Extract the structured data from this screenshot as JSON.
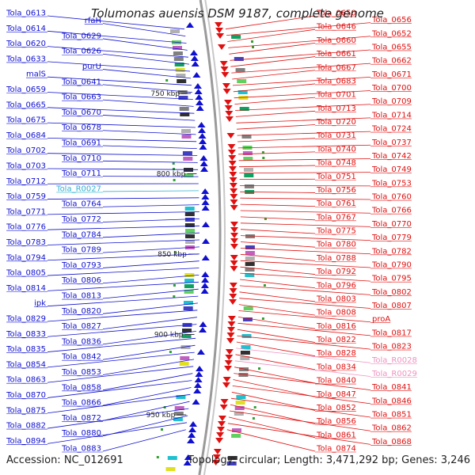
{
  "title": "Tolumonas auensis DSM 9187, complete genome",
  "footer": {
    "accession": "Accession: NC_012691",
    "summary": "Topology: circular; Length: 3,471,292 bp; Genes: 3,246"
  },
  "colors": {
    "left_strand": "#1010d0",
    "right_strand": "#e01010",
    "rna": "#30b0d0",
    "pseudo": "#f090c0",
    "backbone": "#9a9a9a"
  },
  "scale_marks": [
    {
      "label": "750 kbp",
      "pos": 750
    },
    {
      "label": "800 kbp",
      "pos": 800
    },
    {
      "label": "850 kbp",
      "pos": 850
    },
    {
      "label": "900 kbp",
      "pos": 900
    },
    {
      "label": "950 kbp",
      "pos": 950
    }
  ],
  "left_labels": [
    {
      "name": "Tola_0613",
      "type": "cds"
    },
    {
      "name": "rfaH",
      "type": "cds"
    },
    {
      "name": "Tola_0614",
      "type": "cds"
    },
    {
      "name": "Tola_0629",
      "type": "cds"
    },
    {
      "name": "Tola_0620",
      "type": "cds"
    },
    {
      "name": "Tola_0626",
      "type": "cds"
    },
    {
      "name": "Tola_0633",
      "type": "cds"
    },
    {
      "name": "purU",
      "type": "cds"
    },
    {
      "name": "malS",
      "type": "cds"
    },
    {
      "name": "Tola_0641",
      "type": "cds"
    },
    {
      "name": "Tola_0659",
      "type": "cds"
    },
    {
      "name": "Tola_0663",
      "type": "cds"
    },
    {
      "name": "Tola_0665",
      "type": "cds"
    },
    {
      "name": "Tola_0670",
      "type": "cds"
    },
    {
      "name": "Tola_0675",
      "type": "cds"
    },
    {
      "name": "Tola_0678",
      "type": "cds"
    },
    {
      "name": "Tola_0684",
      "type": "cds"
    },
    {
      "name": "Tola_0691",
      "type": "cds"
    },
    {
      "name": "Tola_0702",
      "type": "cds"
    },
    {
      "name": "Tola_0710",
      "type": "cds"
    },
    {
      "name": "Tola_0703",
      "type": "cds"
    },
    {
      "name": "Tola_0711",
      "type": "cds"
    },
    {
      "name": "Tola_0712",
      "type": "cds"
    },
    {
      "name": "Tola_R0027",
      "type": "rna"
    },
    {
      "name": "Tola_0759",
      "type": "cds"
    },
    {
      "name": "Tola_0764",
      "type": "cds"
    },
    {
      "name": "Tola_0771",
      "type": "cds"
    },
    {
      "name": "Tola_0772",
      "type": "cds"
    },
    {
      "name": "Tola_0776",
      "type": "cds"
    },
    {
      "name": "Tola_0784",
      "type": "cds"
    },
    {
      "name": "Tola_0783",
      "type": "cds"
    },
    {
      "name": "Tola_0789",
      "type": "cds"
    },
    {
      "name": "Tola_0794",
      "type": "cds"
    },
    {
      "name": "Tola_0793",
      "type": "cds"
    },
    {
      "name": "Tola_0805",
      "type": "cds"
    },
    {
      "name": "Tola_0806",
      "type": "cds"
    },
    {
      "name": "Tola_0814",
      "type": "cds"
    },
    {
      "name": "Tola_0813",
      "type": "cds"
    },
    {
      "name": "ipk",
      "type": "cds"
    },
    {
      "name": "Tola_0820",
      "type": "cds"
    },
    {
      "name": "Tola_0829",
      "type": "cds"
    },
    {
      "name": "Tola_0827",
      "type": "cds"
    },
    {
      "name": "Tola_0833",
      "type": "cds"
    },
    {
      "name": "Tola_0836",
      "type": "cds"
    },
    {
      "name": "Tola_0835",
      "type": "cds"
    },
    {
      "name": "Tola_0842",
      "type": "cds"
    },
    {
      "name": "Tola_0854",
      "type": "cds"
    },
    {
      "name": "Tola_0853",
      "type": "cds"
    },
    {
      "name": "Tola_0863",
      "type": "cds"
    },
    {
      "name": "Tola_0858",
      "type": "cds"
    },
    {
      "name": "Tola_0870",
      "type": "cds"
    },
    {
      "name": "Tola_0866",
      "type": "cds"
    },
    {
      "name": "Tola_0875",
      "type": "cds"
    },
    {
      "name": "Tola_0872",
      "type": "cds"
    },
    {
      "name": "Tola_0882",
      "type": "cds"
    },
    {
      "name": "Tola_0880",
      "type": "cds"
    },
    {
      "name": "Tola_0894",
      "type": "cds"
    },
    {
      "name": "Tola_0883",
      "type": "cds"
    }
  ],
  "right_labels": [
    {
      "name": "Tola_0650",
      "type": "cds"
    },
    {
      "name": "Tola_0656",
      "type": "cds"
    },
    {
      "name": "Tola_0646",
      "type": "cds"
    },
    {
      "name": "Tola_0652",
      "type": "cds"
    },
    {
      "name": "Tola_0660",
      "type": "cds"
    },
    {
      "name": "Tola_0655",
      "type": "cds"
    },
    {
      "name": "Tola_0661",
      "type": "cds"
    },
    {
      "name": "Tola_0662",
      "type": "cds"
    },
    {
      "name": "Tola_0667",
      "type": "cds"
    },
    {
      "name": "Tola_0671",
      "type": "cds"
    },
    {
      "name": "Tola_0683",
      "type": "cds"
    },
    {
      "name": "Tola_0700",
      "type": "cds"
    },
    {
      "name": "Tola_0701",
      "type": "cds"
    },
    {
      "name": "Tola_0709",
      "type": "cds"
    },
    {
      "name": "Tola_0713",
      "type": "cds"
    },
    {
      "name": "Tola_0714",
      "type": "cds"
    },
    {
      "name": "Tola_0720",
      "type": "cds"
    },
    {
      "name": "Tola_0724",
      "type": "cds"
    },
    {
      "name": "Tola_0731",
      "type": "cds"
    },
    {
      "name": "Tola_0737",
      "type": "cds"
    },
    {
      "name": "Tola_0740",
      "type": "cds"
    },
    {
      "name": "Tola_0742",
      "type": "cds"
    },
    {
      "name": "Tola_0748",
      "type": "cds"
    },
    {
      "name": "Tola_0749",
      "type": "cds"
    },
    {
      "name": "Tola_0751",
      "type": "cds"
    },
    {
      "name": "Tola_0753",
      "type": "cds"
    },
    {
      "name": "Tola_0756",
      "type": "cds"
    },
    {
      "name": "Tola_0760",
      "type": "cds"
    },
    {
      "name": "Tola_0761",
      "type": "cds"
    },
    {
      "name": "Tola_0766",
      "type": "cds"
    },
    {
      "name": "Tola_0767",
      "type": "cds"
    },
    {
      "name": "Tola_0770",
      "type": "cds"
    },
    {
      "name": "Tola_0775",
      "type": "cds"
    },
    {
      "name": "Tola_0779",
      "type": "cds"
    },
    {
      "name": "Tola_0780",
      "type": "cds"
    },
    {
      "name": "Tola_0782",
      "type": "cds"
    },
    {
      "name": "Tola_0788",
      "type": "cds"
    },
    {
      "name": "Tola_0790",
      "type": "cds"
    },
    {
      "name": "Tola_0792",
      "type": "cds"
    },
    {
      "name": "Tola_0795",
      "type": "cds"
    },
    {
      "name": "Tola_0796",
      "type": "cds"
    },
    {
      "name": "Tola_0802",
      "type": "cds"
    },
    {
      "name": "Tola_0803",
      "type": "cds"
    },
    {
      "name": "Tola_0807",
      "type": "cds"
    },
    {
      "name": "Tola_0808",
      "type": "cds"
    },
    {
      "name": "proA",
      "type": "cds"
    },
    {
      "name": "Tola_0816",
      "type": "cds"
    },
    {
      "name": "Tola_0817",
      "type": "cds"
    },
    {
      "name": "Tola_0822",
      "type": "cds"
    },
    {
      "name": "Tola_0823",
      "type": "cds"
    },
    {
      "name": "Tola_0828",
      "type": "cds"
    },
    {
      "name": "Tola_R0028",
      "type": "pseudo"
    },
    {
      "name": "Tola_0834",
      "type": "cds"
    },
    {
      "name": "Tola_R0029",
      "type": "pseudo"
    },
    {
      "name": "Tola_0840",
      "type": "cds"
    },
    {
      "name": "Tola_0841",
      "type": "cds"
    },
    {
      "name": "Tola_0847",
      "type": "cds"
    },
    {
      "name": "Tola_0846",
      "type": "cds"
    },
    {
      "name": "Tola_0852",
      "type": "cds"
    },
    {
      "name": "Tola_0851",
      "type": "cds"
    },
    {
      "name": "Tola_0856",
      "type": "cds"
    },
    {
      "name": "Tola_0862",
      "type": "cds"
    },
    {
      "name": "Tola_0861",
      "type": "cds"
    },
    {
      "name": "Tola_0868",
      "type": "cds"
    },
    {
      "name": "Tola_0874",
      "type": "cds"
    }
  ]
}
